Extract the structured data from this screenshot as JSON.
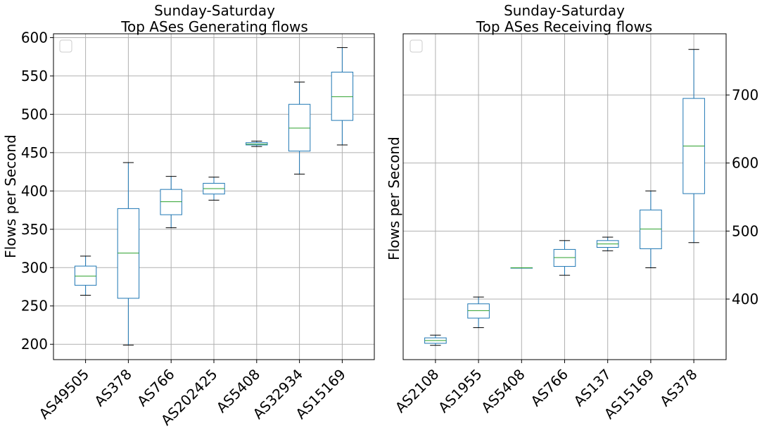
{
  "chart_data": [
    {
      "type": "box",
      "title_line1": "Sunday-Saturday",
      "title_line2": "Top ASes Generating flows",
      "xlabel": "",
      "ylabel": "Flows per Second",
      "ylim": [
        180,
        605
      ],
      "yticks": [
        200,
        250,
        300,
        350,
        400,
        450,
        500,
        550,
        600
      ],
      "grid": true,
      "legend": "top-left (empty)",
      "yaxis_side": "left",
      "box_color": "#1f77b4",
      "median_color": "#2ca02c",
      "categories": [
        "AS49505",
        "AS378",
        "AS766",
        "AS202425",
        "AS5408",
        "AS32934",
        "AS15169"
      ],
      "boxes": [
        {
          "whislo": 264,
          "q1": 277,
          "med": 289,
          "q3": 302,
          "whishi": 315
        },
        {
          "whislo": 199,
          "q1": 260,
          "med": 319,
          "q3": 377,
          "whishi": 437
        },
        {
          "whislo": 352,
          "q1": 369,
          "med": 386,
          "q3": 402,
          "whishi": 419
        },
        {
          "whislo": 388,
          "q1": 396,
          "med": 403,
          "q3": 410,
          "whishi": 418
        },
        {
          "whislo": 458,
          "q1": 460,
          "med": 461,
          "q3": 463,
          "whishi": 465
        },
        {
          "whislo": 422,
          "q1": 452,
          "med": 482,
          "q3": 513,
          "whishi": 542
        },
        {
          "whislo": 460,
          "q1": 492,
          "med": 523,
          "q3": 555,
          "whishi": 587
        }
      ]
    },
    {
      "type": "box",
      "title_line1": "Sunday-Saturday",
      "title_line2": "Top ASes Receiving flows",
      "xlabel": "",
      "ylabel": "Flows per Second",
      "ylim": [
        311,
        790
      ],
      "yticks": [
        400,
        500,
        600,
        700
      ],
      "grid": true,
      "legend": "top-left (empty)",
      "yaxis_side": "right",
      "box_color": "#1f77b4",
      "median_color": "#2ca02c",
      "categories": [
        "AS2108",
        "AS1955",
        "AS5408",
        "AS766",
        "AS137",
        "AS15169",
        "AS378"
      ],
      "boxes": [
        {
          "whislo": 332,
          "q1": 335,
          "med": 339,
          "q3": 343,
          "whishi": 347
        },
        {
          "whislo": 358,
          "q1": 372,
          "med": 383,
          "q3": 393,
          "whishi": 403
        },
        {
          "whislo": 446,
          "q1": 446,
          "med": 446,
          "q3": 446,
          "whishi": 446
        },
        {
          "whislo": 435,
          "q1": 448,
          "med": 461,
          "q3": 473,
          "whishi": 486
        },
        {
          "whislo": 471,
          "q1": 476,
          "med": 481,
          "q3": 486,
          "whishi": 491
        },
        {
          "whislo": 446,
          "q1": 474,
          "med": 503,
          "q3": 531,
          "whishi": 559
        },
        {
          "whislo": 483,
          "q1": 555,
          "med": 625,
          "q3": 695,
          "whishi": 767
        }
      ]
    }
  ]
}
